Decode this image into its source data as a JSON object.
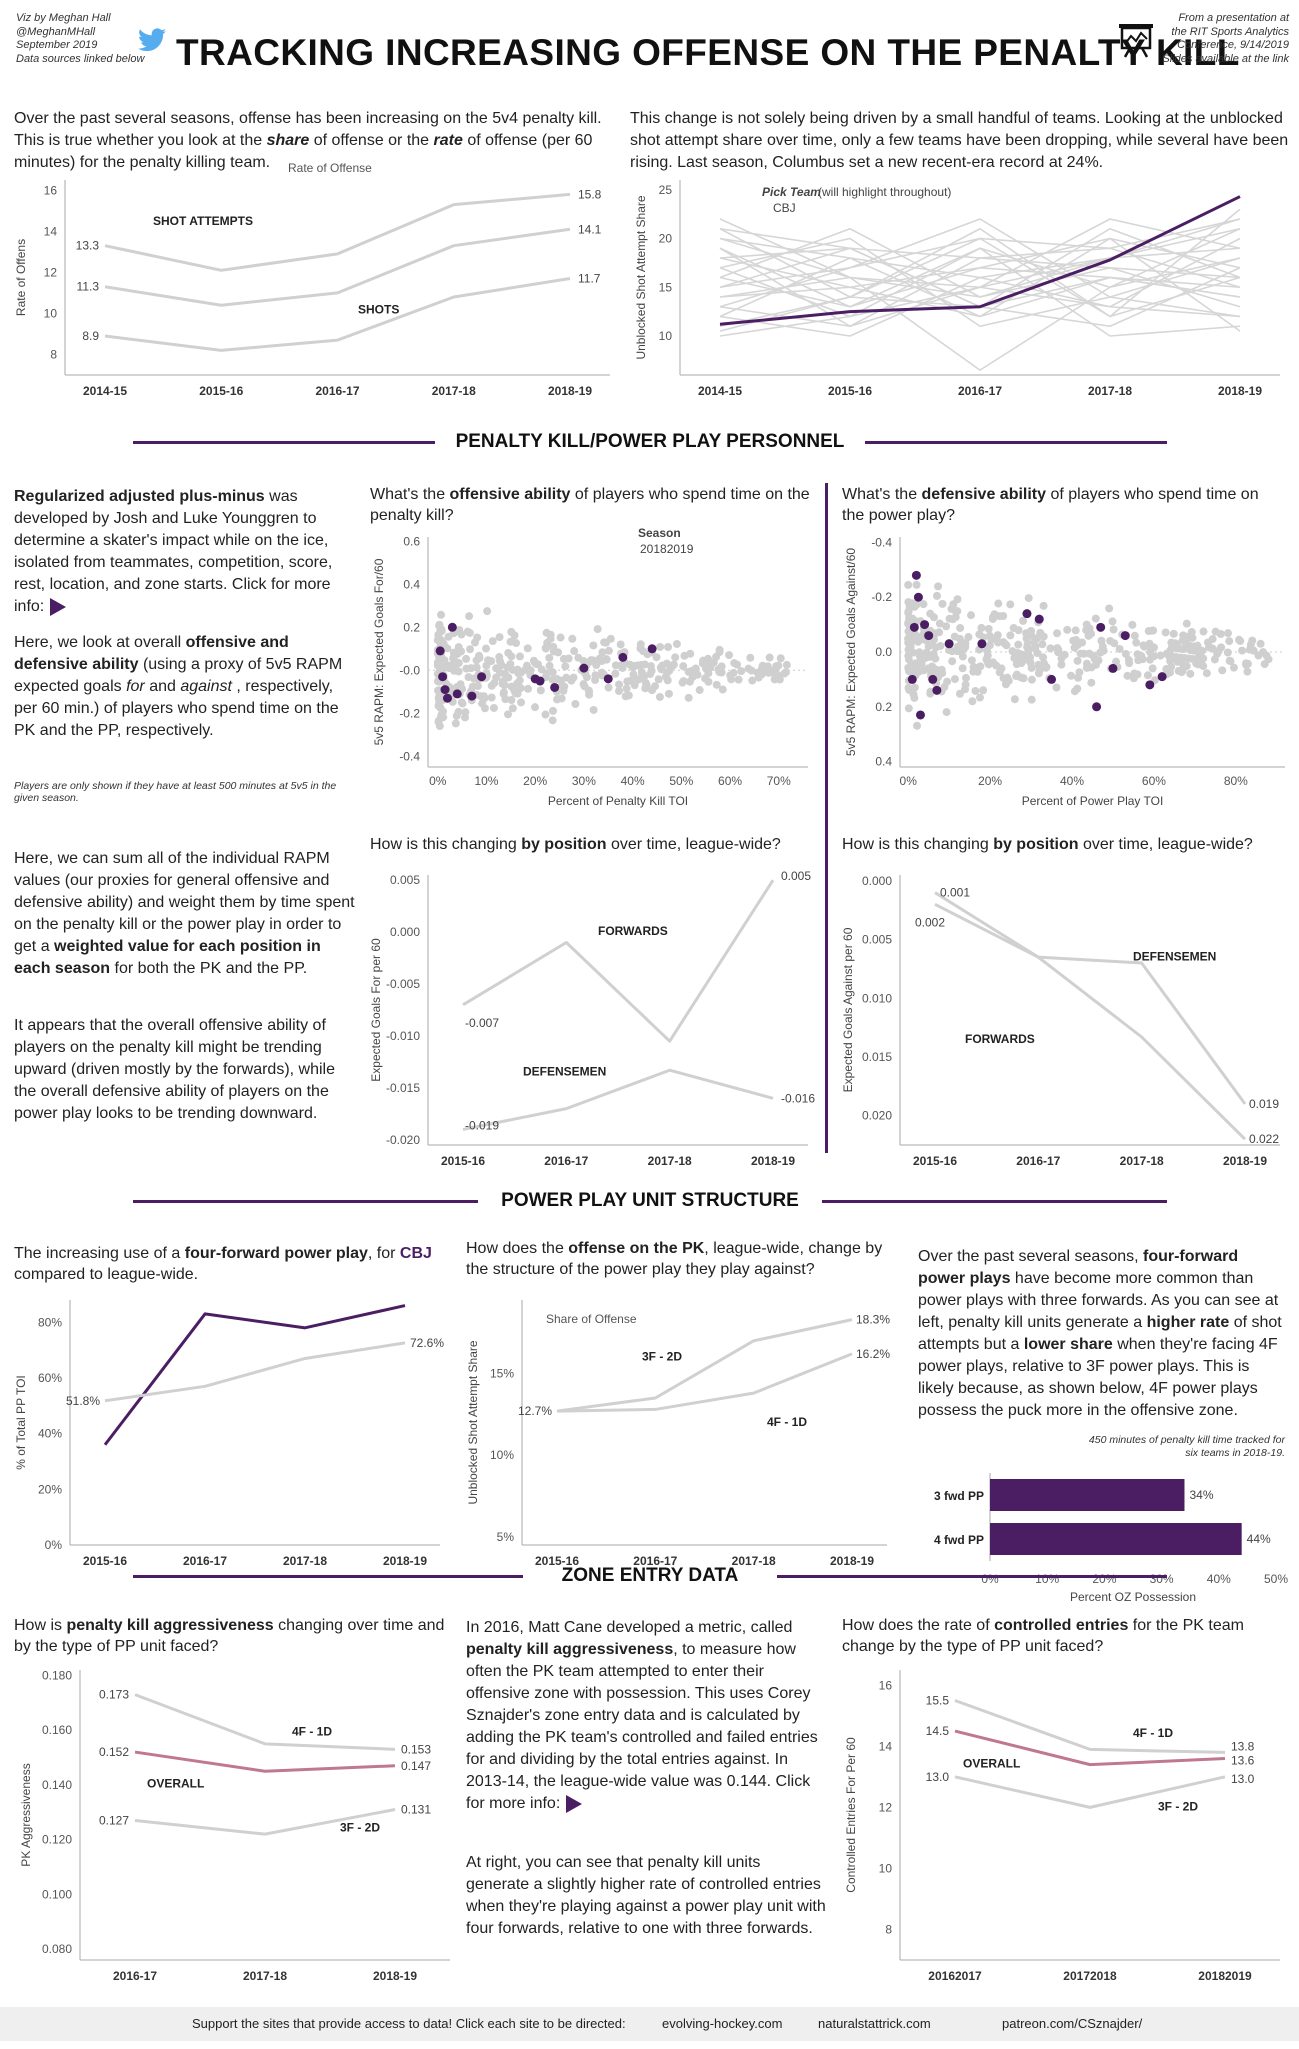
{
  "header": {
    "byline": [
      "Viz by Meghan Hall",
      "@MeghanMHall",
      "September 2019",
      "Data sources linked below"
    ],
    "title": "TRACKING INCREASING OFFENSE ON THE PENALTY KILL",
    "source": [
      "From a presentation at",
      "the RIT Sports Analytics",
      "Conference, 9/14/2019",
      "Slides available at the link"
    ],
    "icons": [
      "twitter-bird-icon",
      "presentation-icon"
    ]
  },
  "intro": {
    "left": "Over the past several seasons, offense has been increasing on the 5v4 penalty kill. This is true whether you look at the share of offense or the rate of offense (per 60 minutes) for the penalty killing team.",
    "right": "This change is not solely being driven by a small handful of teams. Looking at the unblocked shot attempt share over time, only a few teams have been dropping, while several have been rising. Last season, Columbus set a new recent-era record at 24%."
  },
  "sections": {
    "personnel": "PENALTY KILL/POWER PLAY PERSONNEL",
    "ppunit": "POWER PLAY UNIT STRUCTURE",
    "zone": "ZONE ENTRY DATA"
  },
  "text": {
    "rapm1": "Regularized adjusted plus-minus was developed by Josh and Luke Younggren to determine a skater's impact while on the ice, isolated from teammates, competition, score, rest, location, and zone starts. Click for more info:",
    "rapm2": "Here, we look at overall offensive and defensive ability (using a proxy of 5v5 RAPM expected goals for and against, respectively, per 60 min.) of players who spend time on the PK and the PP, respectively.",
    "rapm_note": "Players are only shown if they have at least 500 minutes at 5v5 in the given season.",
    "rapm3": "Here, we can sum all of the individual RAPM values (our proxies for general offensive and defensive ability) and weight them by time spent on the penalty kill or the power play in order to get a weighted value for each position in each season for both the PK and the PP.",
    "rapm4": "It appears that the overall offensive ability of players on the penalty kill might be trending upward (driven mostly by the forwards), while the overall defensive ability of players on the power play looks to be trending downward.",
    "q_off": "What's the offensive ability of players who spend time on the penalty kill?",
    "q_def": "What's the defensive ability of players who spend time on the power play?",
    "q_pos1": "How is this changing by position over time, league-wide?",
    "q_pos2": "How is this changing by position over time, league-wide?",
    "q_4f": "The increasing use of a four-forward power play, for CBJ compared to league-wide.",
    "q_share": "How does the offense on the PK, league-wide, change by the structure of the power play they play against?",
    "ppunit_text": "Over the past several seasons, four-forward power plays have become more common than power plays with three forwards. As you can see at left, penalty kill units generate a higher rate of shot attempts but a lower share when they're facing 4F power plays, relative to 3F power plays. This is likely because, as shown below, 4F power plays possess the puck more in the offensive zone.",
    "oz_note": "450 minutes of penalty kill time tracked for six teams in 2018-19.",
    "q_aggr": "How is penalty kill aggressiveness changing over time and by the type of PP unit faced?",
    "aggr_text1": "In 2016, Matt Cane developed a metric, called penalty kill aggressiveness, to measure how often the PK team attempted to enter their offensive zone with possession. This uses Corey Sznajder's zone entry data and is calculated by adding the PK team's controlled and failed entries for and dividing by the total entries against. In 2013-14, the league-wide value was 0.144. Click for more info:",
    "aggr_text2": "At right, you can see that penalty kill units generate a slightly higher rate of controlled entries when they're playing against a power play unit with four forwards, relative to one with three forwards.",
    "q_ctrl": "How does the rate of controlled entries for the PK team change by the type of PP unit faced?"
  },
  "footer": {
    "lead": "Support the sites that provide access to data! Click each site to be directed:",
    "links": [
      "evolving-hockey.com",
      "naturalstattrick.com",
      "patreon.com/CSznajder/"
    ]
  },
  "chart_data": [
    {
      "id": "rate",
      "type": "line",
      "title": "Rate of Offense",
      "ylabel": "Rate of Offens",
      "categories": [
        "2014-15",
        "2015-16",
        "2016-17",
        "2017-18",
        "2018-19"
      ],
      "ylim": [
        7,
        16.5
      ],
      "yticks": [
        8,
        10,
        12,
        14,
        16
      ],
      "series": [
        {
          "name": "SHOT ATTEMPTS",
          "values": [
            13.3,
            12.1,
            12.9,
            15.3,
            15.8
          ],
          "color": "#d0d0d0"
        },
        {
          "name": "",
          "values": [
            11.3,
            10.4,
            11.0,
            13.3,
            14.1
          ],
          "color": "#d0d0d0"
        },
        {
          "name": "SHOTS",
          "values": [
            8.9,
            8.2,
            8.7,
            10.8,
            11.7
          ],
          "color": "#d0d0d0"
        }
      ],
      "labels": {
        "first": [
          "13.3",
          "11.3",
          "8.9"
        ],
        "last": [
          "15.8",
          "14.1",
          "11.7"
        ]
      }
    },
    {
      "id": "share_team",
      "type": "line",
      "ylabel": "Unblocked Shot Attempt Share",
      "legend_title": "Pick Team",
      "legend_note": "(will highlight throughout)",
      "legend_value": "CBJ",
      "categories": [
        "2014-15",
        "2015-16",
        "2016-17",
        "2017-18",
        "2018-19"
      ],
      "ylim": [
        6,
        26
      ],
      "yticks": [
        10,
        15,
        20,
        25
      ],
      "highlight": {
        "name": "CBJ",
        "values": [
          11.2,
          12.5,
          13.0,
          17.8,
          24.3
        ],
        "color": "#4b1e64"
      },
      "background": [
        [
          21,
          14,
          20,
          12,
          23
        ],
        [
          20,
          16,
          15,
          18,
          22
        ],
        [
          18,
          19,
          13,
          21,
          16
        ],
        [
          17,
          12,
          19,
          15,
          21
        ],
        [
          16,
          21,
          14,
          18,
          19
        ],
        [
          15,
          17,
          22,
          14,
          18
        ],
        [
          14,
          15,
          12,
          20,
          17
        ],
        [
          19,
          13,
          17,
          16,
          14
        ],
        [
          12,
          18,
          16,
          13,
          20
        ],
        [
          13,
          11,
          18,
          19,
          15
        ],
        [
          22,
          16,
          14,
          17,
          13
        ],
        [
          11,
          14,
          21,
          12,
          16
        ],
        [
          10,
          12,
          15,
          22,
          19
        ],
        [
          17,
          20,
          11,
          14,
          12
        ],
        [
          14,
          16,
          6.5,
          15,
          18
        ],
        [
          16,
          13,
          19,
          10,
          11
        ],
        [
          18,
          15,
          17,
          20,
          10.5
        ],
        [
          20,
          18,
          12,
          16,
          14
        ],
        [
          12,
          10,
          16,
          18,
          21
        ],
        [
          15,
          19,
          13,
          11,
          17
        ],
        [
          13,
          17,
          20,
          19,
          22
        ],
        [
          19,
          11,
          15,
          13,
          12
        ],
        [
          21,
          19,
          18,
          17,
          16
        ],
        [
          10.5,
          14,
          13,
          16,
          15
        ]
      ]
    },
    {
      "id": "rapm_off",
      "type": "scatter",
      "ylabel": "5v5 RAPM: Expected Goals For/60",
      "xlabel": "Percent of Penalty Kill TOI",
      "legend_title": "Season",
      "legend_value": "20182019",
      "xlim": [
        -2,
        76
      ],
      "ylim": [
        -0.45,
        0.62
      ],
      "xticks": [
        0,
        10,
        20,
        30,
        40,
        50,
        60,
        70
      ],
      "xtick_labels": [
        "0%",
        "10%",
        "20%",
        "30%",
        "40%",
        "50%",
        "60%",
        "70%"
      ],
      "yticks": [
        0.6,
        0.4,
        0.2,
        0.0,
        -0.2,
        -0.4
      ],
      "ytick_labels": [
        "0.6",
        "0.4",
        "0.2",
        "-0.0",
        "-0.2",
        "-0.4"
      ],
      "highlight_points": [
        [
          0.5,
          0.09
        ],
        [
          1.0,
          -0.03
        ],
        [
          1.5,
          -0.09
        ],
        [
          2.0,
          -0.13
        ],
        [
          3.0,
          0.2
        ],
        [
          4.0,
          -0.11
        ],
        [
          7.0,
          -0.12
        ],
        [
          9.0,
          -0.03
        ],
        [
          20.0,
          -0.04
        ],
        [
          21.0,
          -0.05
        ],
        [
          24.0,
          -0.08
        ],
        [
          30.0,
          0.01
        ],
        [
          35.0,
          -0.04
        ],
        [
          38.0,
          0.06
        ],
        [
          44.0,
          0.1
        ]
      ],
      "highlight_color": "#4b1e64"
    },
    {
      "id": "rapm_def",
      "type": "scatter",
      "ylabel": "5v5 RAPM: Expected Goals Against/60",
      "xlabel": "Percent of Power Play TOI",
      "xlim": [
        -2,
        92
      ],
      "ylim": [
        -0.42,
        0.42
      ],
      "y_reversed": true,
      "xticks": [
        0,
        20,
        40,
        60,
        80
      ],
      "xtick_labels": [
        "0%",
        "20%",
        "40%",
        "60%",
        "80%"
      ],
      "yticks": [
        -0.4,
        -0.2,
        0.0,
        0.2,
        0.4
      ],
      "ytick_labels": [
        "-0.4",
        "-0.2",
        "0.0",
        "0.2",
        "0.4"
      ],
      "highlight_points": [
        [
          1.0,
          0.1
        ],
        [
          1.5,
          -0.09
        ],
        [
          2.0,
          -0.28
        ],
        [
          2.5,
          -0.2
        ],
        [
          3.0,
          0.23
        ],
        [
          4.0,
          -0.1
        ],
        [
          5.0,
          -0.06
        ],
        [
          6.0,
          0.1
        ],
        [
          7.0,
          0.14
        ],
        [
          10.0,
          -0.03
        ],
        [
          18.0,
          -0.03
        ],
        [
          29.0,
          -0.14
        ],
        [
          32.0,
          -0.12
        ],
        [
          35.0,
          0.1
        ],
        [
          46.0,
          0.2
        ],
        [
          47.0,
          -0.09
        ],
        [
          50.0,
          0.06
        ],
        [
          53.0,
          -0.06
        ],
        [
          59.0,
          0.12
        ],
        [
          62.0,
          0.09
        ]
      ],
      "highlight_color": "#4b1e64"
    },
    {
      "id": "pos_pk",
      "type": "line",
      "ylabel": "Expected Goals For per 60",
      "categories": [
        "2015-16",
        "2016-17",
        "2017-18",
        "2018-19"
      ],
      "ylim": [
        -0.0205,
        0.0055
      ],
      "yticks": [
        0.005,
        0.0,
        -0.005,
        -0.01,
        -0.015,
        -0.02
      ],
      "ytick_labels": [
        "0.005",
        "0.000",
        "-0.005",
        "-0.010",
        "-0.015",
        "-0.020"
      ],
      "series": [
        {
          "name": "FORWARDS",
          "values": [
            -0.007,
            -0.001,
            -0.0105,
            0.005
          ]
        },
        {
          "name": "DEFENSEMEN",
          "values": [
            -0.019,
            -0.017,
            -0.0133,
            -0.016
          ]
        }
      ],
      "labels": [
        [
          "-0.007",
          "0.005"
        ],
        [
          "-0.019",
          "-0.016"
        ]
      ]
    },
    {
      "id": "pos_pp",
      "type": "line",
      "ylabel": "Expected Goals Against per 60",
      "categories": [
        "2015-16",
        "2016-17",
        "2017-18",
        "2018-19"
      ],
      "ylim": [
        -0.0005,
        0.0225
      ],
      "y_reversed": true,
      "yticks": [
        0.0,
        0.005,
        0.01,
        0.015,
        0.02
      ],
      "ytick_labels": [
        "0.000",
        "0.005",
        "0.010",
        "0.015",
        "0.020"
      ],
      "series": [
        {
          "name": "DEFENSEMEN",
          "values": [
            0.001,
            0.0065,
            0.007,
            0.019
          ]
        },
        {
          "name": "FORWARDS",
          "values": [
            0.002,
            0.0065,
            0.0133,
            0.022
          ]
        }
      ],
      "labels": [
        [
          "0.001",
          "0.019"
        ],
        [
          "0.002",
          "0.022"
        ]
      ]
    },
    {
      "id": "fourf",
      "type": "line",
      "ylabel": "% of Total PP TOI",
      "categories": [
        "2015-16",
        "2016-17",
        "2017-18",
        "2018-19"
      ],
      "ylim": [
        0,
        88
      ],
      "yticks": [
        0,
        20,
        40,
        60,
        80
      ],
      "ytick_labels": [
        "0%",
        "20%",
        "40%",
        "60%",
        "80%"
      ],
      "series": [
        {
          "name": "CBJ",
          "values": [
            36,
            83,
            78,
            86
          ],
          "color": "#4b1e64"
        },
        {
          "name": "League",
          "values": [
            51.8,
            57,
            67,
            72.6
          ],
          "color": "#d0d0d0"
        }
      ],
      "labels": {
        "league_first": "51.8%",
        "league_last": "72.6%"
      }
    },
    {
      "id": "share_unit",
      "type": "line",
      "title": "Share of Offense",
      "ylabel": "Unblocked Shot Attempt Share",
      "categories": [
        "2015-16",
        "2016-17",
        "2017-18",
        "2018-19"
      ],
      "ylim": [
        4.5,
        19.5
      ],
      "yticks": [
        5,
        10,
        15
      ],
      "ytick_labels": [
        "5%",
        "10%",
        "15%"
      ],
      "series": [
        {
          "name": "3F - 2D",
          "values": [
            12.7,
            13.5,
            17.0,
            18.3
          ]
        },
        {
          "name": "4F - 1D",
          "values": [
            12.7,
            12.8,
            13.8,
            16.2
          ]
        }
      ],
      "labels": {
        "first": "12.7%",
        "last": [
          "18.3%",
          "16.2%"
        ]
      }
    },
    {
      "id": "oz",
      "type": "bar",
      "xlabel": "Percent OZ Possession",
      "categories": [
        "3 fwd PP",
        "4 fwd PP"
      ],
      "values": [
        34,
        44
      ],
      "value_labels": [
        "34%",
        "44%"
      ],
      "xlim": [
        0,
        50
      ],
      "xticks": [
        0,
        10,
        20,
        30,
        40,
        50
      ],
      "xtick_labels": [
        "0%",
        "10%",
        "20%",
        "30%",
        "40%",
        "50%"
      ],
      "color": "#4b1e64"
    },
    {
      "id": "aggr",
      "type": "line",
      "ylabel": "PK Aggressiveness",
      "categories": [
        "2016-17",
        "2017-18",
        "2018-19"
      ],
      "ylim": [
        0.076,
        0.182
      ],
      "yticks": [
        0.18,
        0.16,
        0.14,
        0.12,
        0.1,
        0.08
      ],
      "ytick_labels": [
        "0.180",
        "0.160",
        "0.140",
        "0.120",
        "0.100",
        "0.080"
      ],
      "series": [
        {
          "name": "4F - 1D",
          "values": [
            0.173,
            0.155,
            0.153
          ],
          "color": "#d0d0d0"
        },
        {
          "name": "OVERALL",
          "values": [
            0.152,
            0.145,
            0.147
          ],
          "color": "#c07890"
        },
        {
          "name": "3F - 2D",
          "values": [
            0.127,
            0.122,
            0.131
          ],
          "color": "#d0d0d0"
        }
      ],
      "labels": [
        [
          "0.173",
          "0.153"
        ],
        [
          "0.152",
          "0.147"
        ],
        [
          "0.127",
          "0.131"
        ]
      ]
    },
    {
      "id": "ctrl",
      "type": "line",
      "ylabel": "Controlled Entries For Per 60",
      "categories": [
        "20162017",
        "20172018",
        "20182019"
      ],
      "ylim": [
        7,
        16.5
      ],
      "yticks": [
        16,
        14,
        12,
        10,
        8
      ],
      "series": [
        {
          "name": "4F - 1D",
          "values": [
            15.5,
            13.9,
            13.8
          ],
          "color": "#d0d0d0"
        },
        {
          "name": "OVERALL",
          "values": [
            14.5,
            13.4,
            13.6
          ],
          "color": "#c07890"
        },
        {
          "name": "3F - 2D",
          "values": [
            13.0,
            12.0,
            13.0
          ],
          "color": "#d0d0d0"
        }
      ],
      "labels": [
        [
          "15.5",
          "13.8"
        ],
        [
          "14.5",
          "13.6"
        ],
        [
          "13.0",
          "13.0"
        ]
      ]
    }
  ]
}
